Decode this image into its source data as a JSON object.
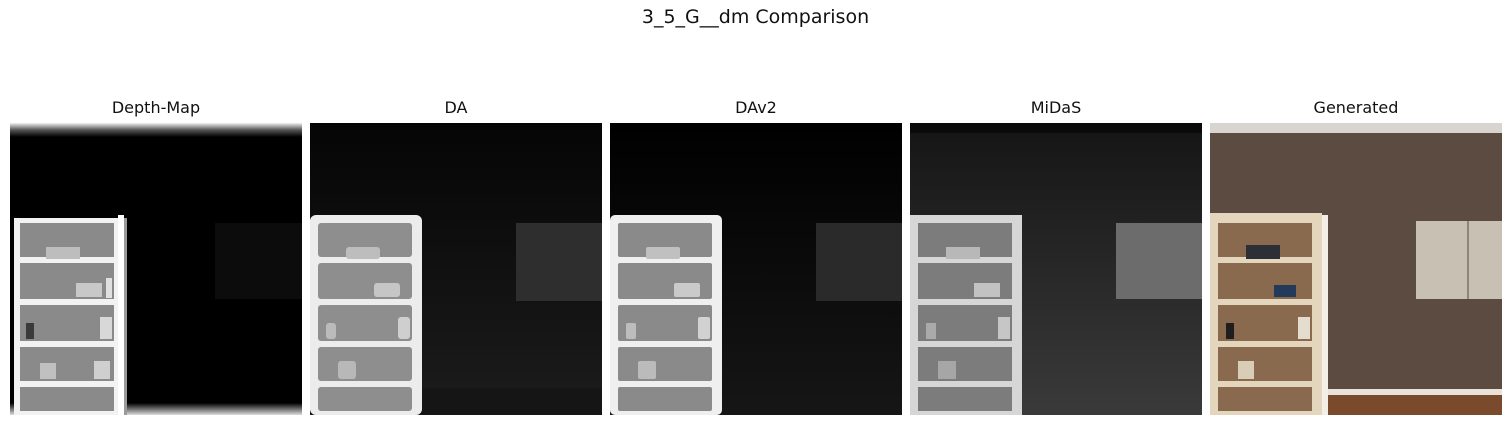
{
  "figure": {
    "title": "3_5_G__dm Comparison"
  },
  "panels": [
    {
      "title": "Depth-Map",
      "image": "depth-map-shelf-image"
    },
    {
      "title": "DA",
      "image": "da-depth-shelf-image"
    },
    {
      "title": "DAv2",
      "image": "dav2-depth-shelf-image"
    },
    {
      "title": "MiDaS",
      "image": "midas-depth-shelf-image"
    },
    {
      "title": "Generated",
      "image": "generated-room-shelf-image"
    }
  ]
}
